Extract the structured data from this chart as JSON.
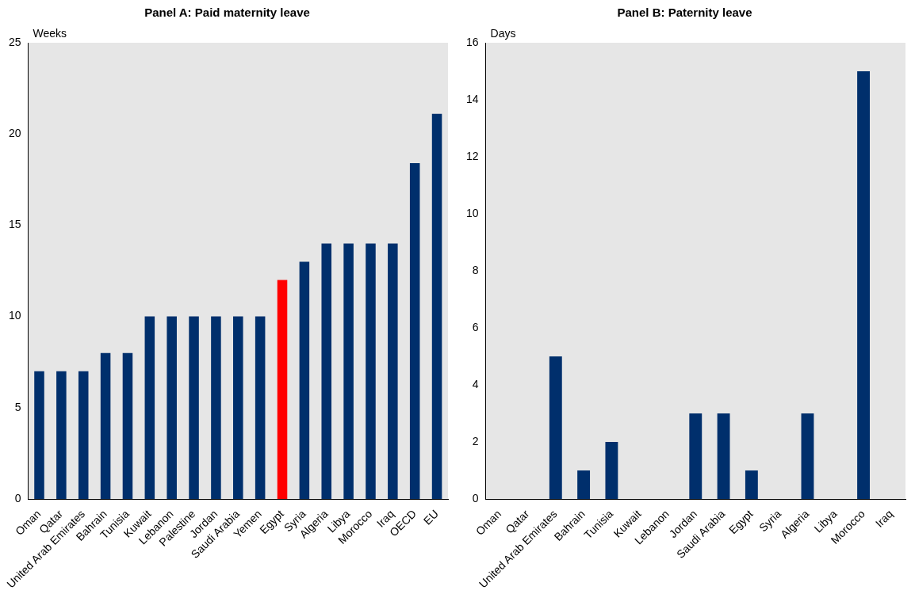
{
  "chart_data": [
    {
      "type": "bar",
      "title": "Panel A: Paid maternity leave",
      "ylabel": "Weeks",
      "categories": [
        "Oman",
        "Qatar",
        "United Arab Emirates",
        "Bahrain",
        "Tunisia",
        "Kuwait",
        "Lebanon",
        "Palestine",
        "Jordan",
        "Saudi Arabia",
        "Yemen",
        "Egypt",
        "Syria",
        "Algeria",
        "Libya",
        "Morocco",
        "Iraq",
        "OECD",
        "EU"
      ],
      "values": [
        7,
        7,
        7,
        8,
        8,
        10,
        10,
        10,
        10,
        10,
        10,
        12,
        13,
        14,
        14,
        14,
        14,
        18.4,
        21.1
      ],
      "colors": [
        "#002f6c",
        "#002f6c",
        "#002f6c",
        "#002f6c",
        "#002f6c",
        "#002f6c",
        "#002f6c",
        "#002f6c",
        "#002f6c",
        "#002f6c",
        "#002f6c",
        "#ff0000",
        "#002f6c",
        "#002f6c",
        "#002f6c",
        "#002f6c",
        "#002f6c",
        "#002f6c",
        "#002f6c"
      ],
      "ylim": [
        0,
        25
      ],
      "yticks": [
        0,
        5,
        10,
        15,
        20,
        25
      ]
    },
    {
      "type": "bar",
      "title": "Panel B: Paternity leave",
      "ylabel": "Days",
      "categories": [
        "Oman",
        "Qatar",
        "United Arab Emirates",
        "Bahrain",
        "Tunisia",
        "Kuwait",
        "Lebanon",
        "Jordan",
        "Saudi Arabia",
        "Egypt",
        "Syria",
        "Algeria",
        "Libya",
        "Morocco",
        "Iraq"
      ],
      "values": [
        0,
        0,
        5,
        1,
        2,
        0,
        0,
        3,
        3,
        1,
        0,
        3,
        0,
        15,
        0
      ],
      "color": "#002f6c",
      "ylim": [
        0,
        16
      ],
      "yticks": [
        0,
        2,
        4,
        6,
        8,
        10,
        12,
        14,
        16
      ]
    }
  ]
}
